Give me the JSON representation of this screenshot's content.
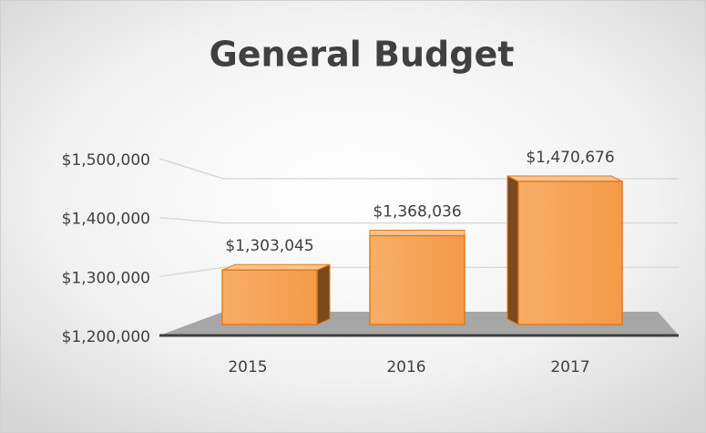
{
  "chart_data": {
    "type": "bar3d",
    "title": "General Budget",
    "categories": [
      "2015",
      "2016",
      "2017"
    ],
    "values": [
      1303045,
      1368036,
      1470676
    ],
    "value_labels": [
      "$1,303,045",
      "$1,368,036",
      "$1,470,676"
    ],
    "color": "#f6a85e",
    "ylim": [
      1200000,
      1500000
    ],
    "yticks": [
      {
        "value": 1200000,
        "label": "$1,200,000"
      },
      {
        "value": 1300000,
        "label": "$1,300,000"
      },
      {
        "value": 1400000,
        "label": "$1,400,000"
      },
      {
        "value": 1500000,
        "label": "$1,500,000"
      }
    ],
    "grid": true
  }
}
